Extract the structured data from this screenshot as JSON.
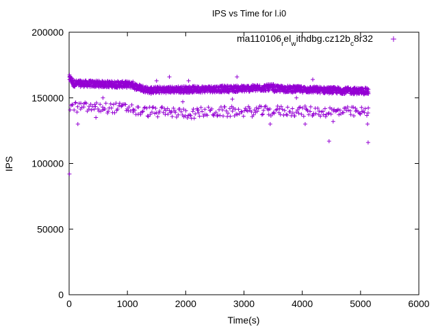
{
  "chart_data": {
    "type": "scatter",
    "title": "IPS vs Time for l.i0",
    "xlabel": "Time(s)",
    "ylabel": "IPS",
    "xlim": [
      0,
      6000
    ],
    "ylim": [
      0,
      200000
    ],
    "xticks": [
      0,
      1000,
      2000,
      3000,
      4000,
      5000,
      6000
    ],
    "yticks": [
      0,
      50000,
      100000,
      150000,
      200000
    ],
    "grid": false,
    "legend_position": "top-right",
    "series": [
      {
        "name_parts": [
          {
            "text": "ma110106",
            "shift": "none"
          },
          {
            "text": "r",
            "shift": "sub"
          },
          {
            "text": "el",
            "shift": "none"
          },
          {
            "text": "w",
            "shift": "sub"
          },
          {
            "text": "ithdbg.cz12b",
            "shift": "none"
          },
          {
            "text": "c",
            "shift": "sub"
          },
          {
            "text": "8r32",
            "shift": "none"
          }
        ],
        "color": "#9400d3",
        "marker": "plus",
        "bands": [
          {
            "x_start": 0,
            "x_end": 60,
            "y_start": 165000,
            "y_end": 162000,
            "spread": 2500
          },
          {
            "x_start": 60,
            "x_end": 1100,
            "y_start": 161000,
            "y_end": 160000,
            "spread": 2500
          },
          {
            "x_start": 1100,
            "x_end": 1400,
            "y_start": 159000,
            "y_end": 155500,
            "spread": 2500
          },
          {
            "x_start": 1400,
            "x_end": 3000,
            "y_start": 156000,
            "y_end": 157000,
            "spread": 2500
          },
          {
            "x_start": 3000,
            "x_end": 3500,
            "y_start": 157000,
            "y_end": 158000,
            "spread": 2500
          },
          {
            "x_start": 3500,
            "x_end": 5130,
            "y_start": 157000,
            "y_end": 155000,
            "spread": 2500
          }
        ],
        "lower_band": [
          {
            "x_start": 0,
            "x_end": 1100,
            "y_start": 143000,
            "y_end": 142000,
            "spread": 4000
          },
          {
            "x_start": 1100,
            "x_end": 2200,
            "y_start": 140000,
            "y_end": 138000,
            "spread": 4000
          },
          {
            "x_start": 2200,
            "x_end": 3600,
            "y_start": 139000,
            "y_end": 140000,
            "spread": 4000
          },
          {
            "x_start": 3600,
            "x_end": 5130,
            "y_start": 140000,
            "y_end": 139000,
            "spread": 4000
          }
        ],
        "values": [
          {
            "x": 5,
            "y": 92000
          },
          {
            "x": 150,
            "y": 130000
          },
          {
            "x": 460,
            "y": 135000
          },
          {
            "x": 1720,
            "y": 166000
          },
          {
            "x": 2880,
            "y": 166000
          },
          {
            "x": 3450,
            "y": 130000
          },
          {
            "x": 4050,
            "y": 130000
          },
          {
            "x": 4460,
            "y": 117000
          },
          {
            "x": 4530,
            "y": 132000
          },
          {
            "x": 5130,
            "y": 116000
          },
          {
            "x": 5120,
            "y": 130000
          },
          {
            "x": 1500,
            "y": 163000
          },
          {
            "x": 4180,
            "y": 164000
          },
          {
            "x": 2050,
            "y": 163000
          },
          {
            "x": 580,
            "y": 150000
          },
          {
            "x": 1950,
            "y": 147000
          },
          {
            "x": 2800,
            "y": 149000
          },
          {
            "x": 3900,
            "y": 150000
          }
        ]
      }
    ]
  }
}
